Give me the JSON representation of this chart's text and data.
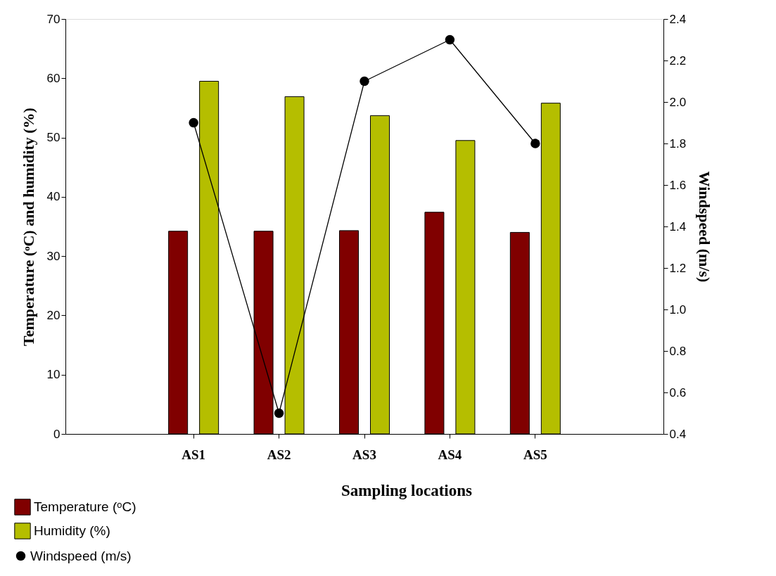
{
  "chart_data": {
    "type": "bar",
    "xlabel": "Sampling locations",
    "ylabel": "Temperature (ᵒC) and humidity (%)",
    "y2label": "Windspeed (m/s)",
    "categories": [
      "AS1",
      "AS2",
      "AS3",
      "AS4",
      "AS5"
    ],
    "series": [
      {
        "name": "Temperature (ᵒC)",
        "color": "#800000",
        "values": [
          34.2,
          34.2,
          34.3,
          37.4,
          34.0
        ]
      },
      {
        "name": "Humidity (%)",
        "color": "#b5be00",
        "values": [
          59.5,
          56.9,
          53.7,
          49.5,
          55.8
        ]
      },
      {
        "name": "Windspeed (m/s)",
        "type": "line",
        "axis": "y2",
        "color": "#000000",
        "values": [
          1.9,
          0.5,
          2.1,
          2.3,
          1.8
        ]
      }
    ],
    "ylim": [
      0,
      70
    ],
    "yticks": [
      0,
      10,
      20,
      30,
      40,
      50,
      60,
      70
    ],
    "y2lim": [
      0.4,
      2.4
    ],
    "y2ticks": [
      0.4,
      0.6,
      0.8,
      {
        "value": 1.0,
        "label": "1.0"
      },
      1.2,
      1.4,
      1.6,
      1.8,
      {
        "value": 2.0,
        "label": "2.0"
      },
      2.2,
      2.4
    ],
    "marker": "circle",
    "line_style": "solid",
    "grid": false,
    "legend": "bottom left"
  }
}
